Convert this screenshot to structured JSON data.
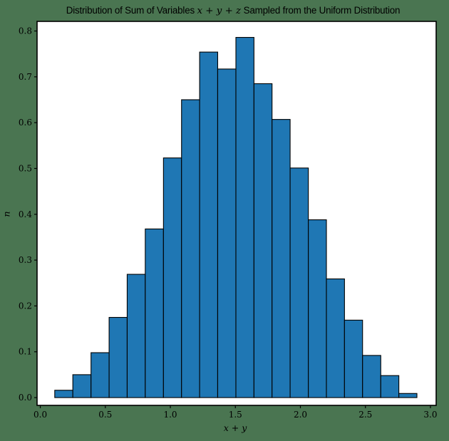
{
  "figure": {
    "background_color": "#4a7551",
    "plot_background_color": "#ffffff",
    "text_color": "#000000",
    "title": {
      "prefix": "Distribution of Sum of Variables ",
      "math": "x + y + z",
      "suffix": " Sampled from the Uniform Distribution"
    },
    "xlabel_math": "x + y",
    "ylabel_math": "n"
  },
  "chart_data": {
    "type": "bar",
    "subtype": "histogram",
    "title": "Distribution of Sum of Variables x + y + z Sampled from the Uniform Distribution",
    "xlabel": "x + y",
    "ylabel": "n",
    "bin_edges": [
      0.111,
      0.25,
      0.39,
      0.529,
      0.668,
      0.807,
      0.947,
      1.086,
      1.225,
      1.364,
      1.504,
      1.643,
      1.782,
      1.921,
      2.061,
      2.2,
      2.339,
      2.478,
      2.618,
      2.757,
      2.896
    ],
    "values": [
      0.016,
      0.05,
      0.098,
      0.175,
      0.269,
      0.368,
      0.523,
      0.65,
      0.754,
      0.717,
      0.786,
      0.685,
      0.607,
      0.501,
      0.388,
      0.259,
      0.169,
      0.092,
      0.048,
      0.009
    ],
    "xticks": [
      0.0,
      0.5,
      1.0,
      1.5,
      2.0,
      2.5,
      3.0
    ],
    "xtick_labels": [
      "0.0",
      "0.5",
      "1.0",
      "1.5",
      "2.0",
      "2.5",
      "3.0"
    ],
    "yticks": [
      0.0,
      0.1,
      0.2,
      0.3,
      0.4,
      0.5,
      0.6,
      0.7,
      0.8
    ],
    "ytick_labels": [
      "0.0",
      "0.1",
      "0.2",
      "0.3",
      "0.4",
      "0.5",
      "0.6",
      "0.7",
      "0.8"
    ],
    "xlim": [
      -0.025,
      3.044
    ],
    "ylim": [
      -0.017,
      0.821
    ],
    "bar_color": "#1f77b4",
    "bar_edge_color": "#000000",
    "grid": false,
    "legend": false
  }
}
